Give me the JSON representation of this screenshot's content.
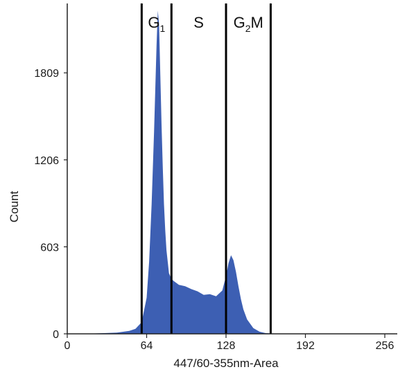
{
  "chart_data": {
    "type": "area",
    "xlabel": "447/60-355nm-Area",
    "ylabel": "Count",
    "xlim": [
      0,
      256
    ],
    "ylim": [
      0,
      2290
    ],
    "x_ticks": [
      "0",
      "64",
      "128",
      "192",
      "256"
    ],
    "y_ticks": [
      "0",
      "603",
      "1206",
      "1809"
    ],
    "fill_color": "#3d5fb3",
    "grid": false,
    "legend": "none",
    "series": [
      {
        "x": [
          0,
          20,
          40,
          50,
          55,
          60,
          64,
          66,
          68,
          70,
          71,
          72,
          73,
          74,
          75,
          76,
          77,
          78,
          79,
          80,
          82,
          84,
          86,
          90,
          95,
          100,
          105,
          110,
          115,
          120,
          125,
          128,
          130,
          132,
          134,
          136,
          138,
          140,
          142,
          145,
          150,
          155,
          160,
          170,
          180,
          256
        ],
        "y": [
          0,
          2,
          8,
          20,
          35,
          80,
          250,
          500,
          900,
          1400,
          1700,
          2000,
          2240,
          2150,
          1800,
          1450,
          1150,
          900,
          720,
          580,
          420,
          380,
          365,
          340,
          330,
          310,
          295,
          270,
          275,
          260,
          300,
          400,
          490,
          545,
          510,
          430,
          330,
          240,
          170,
          100,
          40,
          15,
          5,
          1,
          0,
          0
        ]
      }
    ]
  },
  "gates": [
    {
      "name": "G1",
      "main": "G",
      "sub": "1",
      "after": "",
      "start": 60,
      "end": 84
    },
    {
      "name": "S",
      "main": "S",
      "sub": "",
      "after": "",
      "start": 84,
      "end": 128
    },
    {
      "name": "G2M",
      "main": "G",
      "sub": "2",
      "after": "M",
      "start": 128,
      "end": 164
    }
  ]
}
